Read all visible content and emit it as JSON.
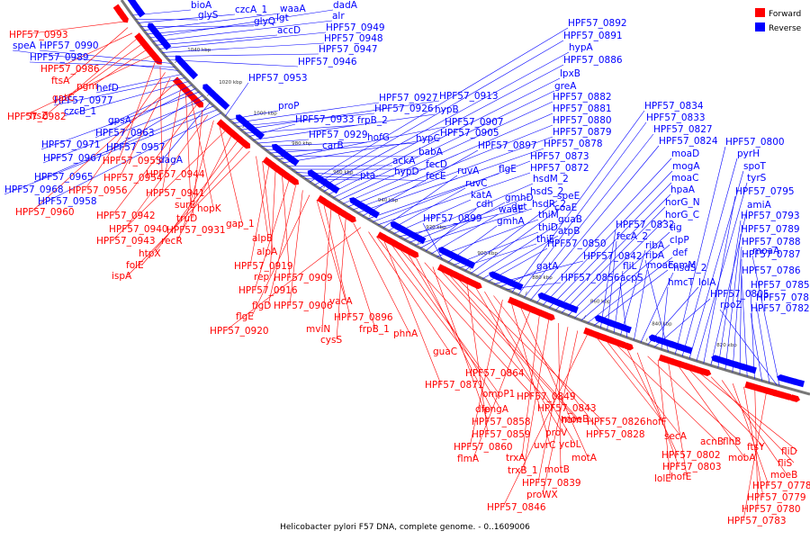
{
  "legend": {
    "forward": {
      "label": "Forward",
      "color": "#ff0000"
    },
    "reverse": {
      "label": "Reverse",
      "color": "#0000ff"
    }
  },
  "caption": "Helicobacter pylori F57 DNA, complete genome. - 0..1609006",
  "ticks": [
    "1040 kbp",
    "1020 kbp",
    "1000 kbp",
    "980 kbp",
    "960 kbp",
    "940 kbp",
    "920 kbp",
    "900 kbp",
    "880 kbp",
    "860 kbp",
    "840 kbp",
    "820 kbp"
  ],
  "reverse_labels": [
    "bioA",
    "glyS",
    "czcA_1",
    "glyQ",
    "waaA",
    "lgt",
    "dadA",
    "alr",
    "accD",
    "HPF57_0949",
    "HPF57_0948",
    "HPF57_0947",
    "HPF57_0946",
    "HPF57_0990",
    "HPF57_0989",
    "speA",
    "hefD",
    "HPF57_0977",
    "czcB_1",
    "gpsA",
    "HPF57_0963",
    "HPF57_0971",
    "HPF57_0957",
    "HPF57_0967",
    "dagA",
    "HPF57_0965",
    "HPF57_0968",
    "HPF57_0958",
    "HPF57_0953",
    "proP",
    "HPF57_0927",
    "HPF57_0926",
    "HPF57_0913",
    "frpB_2",
    "HPF57_0933",
    "hypB",
    "HPF57_0929",
    "hofG",
    "carB",
    "hypC",
    "babA",
    "HPF57_0907",
    "HPF57_0905",
    "ackA",
    "fecD",
    "hypD",
    "fecE",
    "pta",
    "HPF57_0892",
    "HPF57_0891",
    "hypA",
    "HPF57_0886",
    "lpxB",
    "greA",
    "HPF57_0882",
    "HPF57_0881",
    "HPF57_0880",
    "HPF57_0879",
    "HPF57_0878",
    "HPF57_0897",
    "flgE",
    "HPF57_0873",
    "HPF57_0872",
    "ruvA",
    "ruvC",
    "katA",
    "dut",
    "hsdM_2",
    "hsdS_2",
    "hsdR_2",
    "gmhD",
    "cdh",
    "waaE",
    "thiM",
    "HPF57_0899",
    "gmhA",
    "thiD",
    "thiE",
    "speE",
    "coaE",
    "guaB",
    "atpB",
    "HPF57_0850",
    "HPF57_0842",
    "gatA",
    "HPF57_0856",
    "HPF57_0834",
    "HPF57_0833",
    "HPF57_0827",
    "HPF57_0824",
    "moaD",
    "mogA",
    "moaC",
    "hpaA",
    "horG_N",
    "horG_C",
    "tig",
    "clpP",
    "def",
    "comM",
    "HPF57_0832",
    "fecA_2",
    "fliL",
    "ribA",
    "acpS",
    "moaE",
    "hsdS_2",
    "lolA",
    "HPF57_0805",
    "hmcT",
    "ribA",
    "HPF57_0800",
    "pyrH",
    "spoT",
    "tyrS",
    "HPF57_0795",
    "amiA",
    "HPF57_0793",
    "HPF57_0789",
    "HPF57_0788",
    "HPF57_0787",
    "HPF57_0786",
    "HPF57_0785",
    "HPF57_0782",
    "HPF57_0781",
    "rpoZ",
    "moaA"
  ],
  "forward_labels": [
    "HPF57_0993",
    "ftsA",
    "HPF57_0986",
    "ftsZ",
    "gatC",
    "pgm",
    "HPF57_0982",
    "HPF57_0955",
    "HPF57_0944",
    "HPF57_0956",
    "HPF57_0954",
    "HPF57_0960",
    "HPF57_0941",
    "surE",
    "hopK",
    "HPF57_0942",
    "truD",
    "HPF57_0940",
    "HPF57_0931",
    "gap_1",
    "HPF57_0943",
    "recR",
    "htpX",
    "folE",
    "ispA",
    "alpB",
    "alpA",
    "HPF57_0919",
    "rep",
    "HPF57_0909",
    "HPF57_0916",
    "flgD",
    "HPF57_0906",
    "flgE",
    "vacA",
    "HPF57_0896",
    "mviN",
    "frpB_1",
    "cysS",
    "phnA",
    "HPF57_0920",
    "guaC",
    "HPF57_0864",
    "HPF57_0871",
    "ompP1",
    "HPF57_0849",
    "engA",
    "dfp",
    "HPF57_0843",
    "HPF57_0858",
    "hom",
    "moeB",
    "HPF57_0826",
    "HPF57_0859",
    "proV",
    "ycbL",
    "HPF57_0828",
    "HPF57_0860",
    "uvrC",
    "motA",
    "flmA",
    "trxA",
    "trxB_1",
    "motB",
    "HPF57_0839",
    "proWX",
    "HPF57_0846",
    "hofF",
    "secA",
    "acnB",
    "HPF57_0802",
    "HPF57_0803",
    "flhB",
    "lolE",
    "hofE",
    "mobA",
    "ftsY",
    "fliD",
    "fliS",
    "moeB",
    "HPF57_0778",
    "HPF57_0779",
    "HPF57_0780",
    "HPF57_0783"
  ]
}
